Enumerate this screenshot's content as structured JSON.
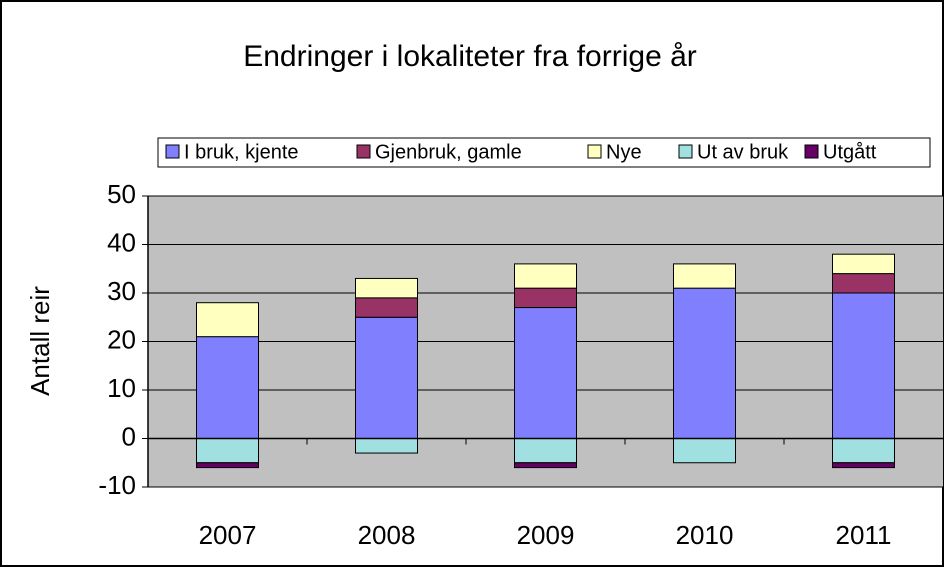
{
  "chart_data": {
    "type": "bar",
    "stacked": true,
    "title": "Endringer i lokaliteter fra forrige år",
    "y_label": "Antall reir",
    "categories": [
      "2007",
      "2008",
      "2009",
      "2010",
      "2011"
    ],
    "series": [
      {
        "name": "I bruk, kjente",
        "color": "#8080ff",
        "values": [
          21,
          25,
          27,
          31,
          30
        ]
      },
      {
        "name": "Gjenbruk, gamle",
        "color": "#993366",
        "values": [
          0,
          4,
          4,
          0,
          4
        ]
      },
      {
        "name": "Nye",
        "color": "#ffffc0",
        "values": [
          7,
          4,
          5,
          5,
          4
        ]
      },
      {
        "name": "Ut av bruk",
        "color": "#a0e0e0",
        "values": [
          -5,
          -3,
          -5,
          -5,
          -5
        ]
      },
      {
        "name": "Utgått",
        "color": "#660066",
        "values": [
          -1,
          0,
          -1,
          0,
          -1
        ]
      }
    ],
    "ylim": [
      -10,
      50
    ],
    "yticks": [
      -10,
      0,
      10,
      20,
      30,
      40,
      50
    ],
    "grid": true,
    "legend": "top"
  }
}
